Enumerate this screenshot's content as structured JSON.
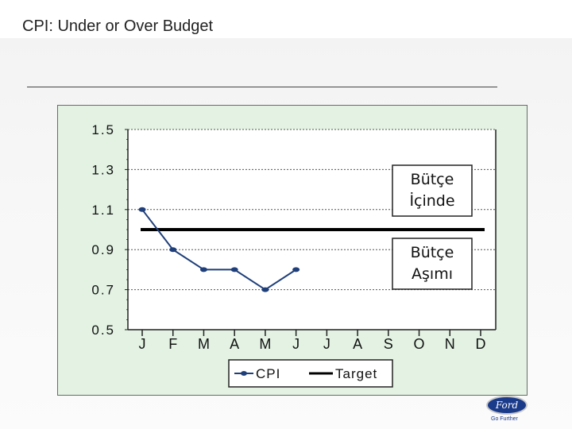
{
  "slide": {
    "title": "CPI: Under or Over Budget",
    "logo": {
      "brand": "Ford",
      "tagline": "Go Further"
    }
  },
  "chart_data": {
    "type": "line",
    "categories": [
      "J",
      "F",
      "M",
      "A",
      "M",
      "J",
      "J",
      "A",
      "S",
      "O",
      "N",
      "D"
    ],
    "ylim": [
      0.5,
      1.5
    ],
    "yticks": [
      "0.5",
      "0.7",
      "0.9",
      "1.1",
      "1.3",
      "1.5"
    ],
    "grid": true,
    "series": [
      {
        "name": "CPI",
        "values": [
          1.1,
          0.9,
          0.8,
          0.8,
          0.7,
          0.8,
          null,
          null,
          null,
          null,
          null,
          null
        ],
        "color": "#1f3f7a"
      },
      {
        "name": "Target",
        "values": [
          1.0,
          1.0,
          1.0,
          1.0,
          1.0,
          1.0,
          1.0,
          1.0,
          1.0,
          1.0,
          1.0,
          1.0
        ],
        "color": "#000000"
      }
    ],
    "annotations": [
      {
        "text_line1": "Bütçe",
        "text_line2": "İçinde",
        "region": "above-target"
      },
      {
        "text_line1": "Bütçe",
        "text_line2": "Aşımı",
        "region": "below-target"
      }
    ],
    "legend": {
      "position": "bottom",
      "items": [
        "CPI",
        "Target"
      ]
    }
  }
}
